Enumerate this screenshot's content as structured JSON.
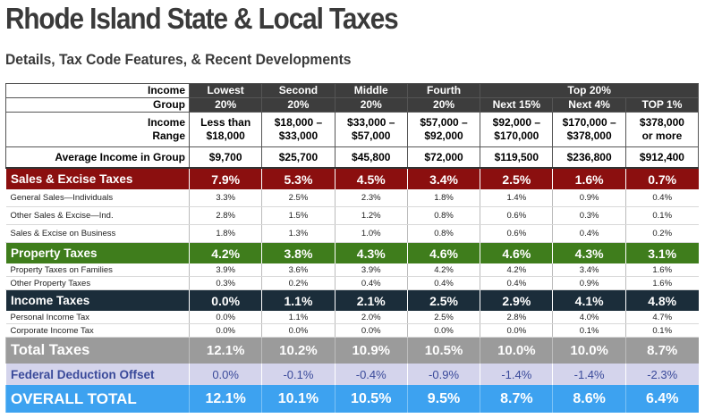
{
  "title": "Rhode Island State & Local Taxes",
  "subtitle": "Details, Tax Code Features, & Recent Developments",
  "header": {
    "income_group_label": [
      "Income",
      "Group"
    ],
    "income_range_label": [
      "Income",
      "Range"
    ],
    "avg_label": "Average Income in Group",
    "top_group": "Top 20%",
    "columns": [
      {
        "name": [
          "Lowest",
          "20%"
        ],
        "range": [
          "Less than",
          "$18,000"
        ],
        "avg": "$9,700"
      },
      {
        "name": [
          "Second",
          "20%"
        ],
        "range": [
          "$18,000 –",
          "$33,000"
        ],
        "avg": "$25,700"
      },
      {
        "name": [
          "Middle",
          "20%"
        ],
        "range": [
          "$33,000 –",
          "$57,000"
        ],
        "avg": "$45,800"
      },
      {
        "name": [
          "Fourth",
          "20%"
        ],
        "range": [
          "$57,000 –",
          "$92,000"
        ],
        "avg": "$72,000"
      },
      {
        "name": [
          "",
          "Next 15%"
        ],
        "range": [
          "$92,000 –",
          "$170,000"
        ],
        "avg": "$119,500"
      },
      {
        "name": [
          "",
          "Next 4%"
        ],
        "range": [
          "$170,000 –",
          "$378,000"
        ],
        "avg": "$236,800"
      },
      {
        "name": [
          "",
          "TOP 1%"
        ],
        "range": [
          "$378,000",
          "or more"
        ],
        "avg": "$912,400"
      }
    ]
  },
  "sections": [
    {
      "key": "sales",
      "label": "Sales & Excise Taxes",
      "values": [
        "7.9%",
        "5.3%",
        "4.5%",
        "3.4%",
        "2.5%",
        "1.6%",
        "0.7%"
      ],
      "rows": [
        {
          "label": "General Sales—Individuals",
          "values": [
            "3.3%",
            "2.5%",
            "2.3%",
            "1.8%",
            "1.4%",
            "0.9%",
            "0.4%"
          ]
        },
        {
          "label": "Other Sales & Excise—Ind.",
          "values": [
            "2.8%",
            "1.5%",
            "1.2%",
            "0.8%",
            "0.6%",
            "0.3%",
            "0.1%"
          ]
        },
        {
          "label": "Sales & Excise on Business",
          "values": [
            "1.8%",
            "1.3%",
            "1.0%",
            "0.8%",
            "0.6%",
            "0.4%",
            "0.2%"
          ]
        }
      ]
    },
    {
      "key": "prop",
      "label": "Property Taxes",
      "values": [
        "4.2%",
        "3.8%",
        "4.3%",
        "4.6%",
        "4.6%",
        "4.3%",
        "3.1%"
      ],
      "rows": [
        {
          "label": "Property Taxes on Families",
          "values": [
            "3.9%",
            "3.6%",
            "3.9%",
            "4.2%",
            "4.2%",
            "3.4%",
            "1.6%"
          ]
        },
        {
          "label": "Other Property Taxes",
          "values": [
            "0.3%",
            "0.2%",
            "0.4%",
            "0.4%",
            "0.4%",
            "0.9%",
            "1.6%"
          ]
        }
      ]
    },
    {
      "key": "inc",
      "label": "Income Taxes",
      "values": [
        "0.0%",
        "1.1%",
        "2.1%",
        "2.5%",
        "2.9%",
        "4.1%",
        "4.8%"
      ],
      "rows": [
        {
          "label": "Personal Income Tax",
          "values": [
            "0.0%",
            "1.1%",
            "2.0%",
            "2.5%",
            "2.8%",
            "4.0%",
            "4.7%"
          ]
        },
        {
          "label": "Corporate Income Tax",
          "values": [
            "0.0%",
            "0.0%",
            "0.0%",
            "0.0%",
            "0.0%",
            "0.1%",
            "0.1%"
          ]
        }
      ]
    }
  ],
  "total": {
    "label": "Total Taxes",
    "values": [
      "12.1%",
      "10.2%",
      "10.9%",
      "10.5%",
      "10.0%",
      "10.0%",
      "8.7%"
    ]
  },
  "federal": {
    "label": "Federal Deduction Offset",
    "values": [
      "0.0%",
      "-0.1%",
      "-0.4%",
      "-0.9%",
      "-1.4%",
      "-1.4%",
      "-2.3%"
    ]
  },
  "overall": {
    "label": "OVERALL TOTAL",
    "values": [
      "12.1%",
      "10.1%",
      "10.5%",
      "9.5%",
      "8.7%",
      "8.6%",
      "6.4%"
    ]
  },
  "colors": {
    "sales": "#8b0f0f",
    "property": "#3f7d1c",
    "income": "#1b2d3a",
    "total": "#9b9b9b",
    "federal": "#d4d4ec",
    "overall": "#3da2f0",
    "header_dark": "#3d3d3d"
  }
}
